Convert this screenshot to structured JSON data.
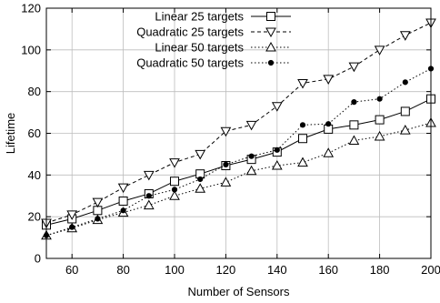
{
  "chart_data": {
    "type": "line",
    "title": "",
    "xlabel": "Number of Sensors",
    "ylabel": "Lifetime",
    "xlim": [
      50,
      200
    ],
    "ylim": [
      0,
      120
    ],
    "x_ticks": [
      60,
      80,
      100,
      120,
      140,
      160,
      180,
      200
    ],
    "y_ticks": [
      0,
      20,
      40,
      60,
      80,
      100,
      120
    ],
    "grid": true,
    "legend_position": "top-left",
    "x": [
      50,
      60,
      70,
      80,
      90,
      100,
      110,
      120,
      130,
      140,
      150,
      160,
      170,
      180,
      190,
      200
    ],
    "series": [
      {
        "name": "Linear 25 targets",
        "marker": "open-square",
        "line_style": "solid",
        "color": "#000000",
        "values": [
          16,
          19,
          23,
          27.5,
          31,
          37,
          40.5,
          44.5,
          47.5,
          51,
          57.5,
          62,
          64,
          66.5,
          70.5,
          76.5
        ]
      },
      {
        "name": "Quadratic 25 targets",
        "marker": "open-triangle-down",
        "line_style": "dashed",
        "color": "#000000",
        "values": [
          17,
          21,
          27,
          34,
          40,
          46,
          50,
          61,
          64,
          73,
          84,
          86,
          92,
          100,
          107,
          113
        ]
      },
      {
        "name": "Linear 50 targets",
        "marker": "open-triangle-up",
        "line_style": "dotted",
        "color": "#000000",
        "values": [
          11,
          14.5,
          18.5,
          22,
          25.5,
          30,
          33.5,
          36.5,
          42,
          44.5,
          46,
          50.5,
          56.5,
          58.5,
          61.5,
          65
        ]
      },
      {
        "name": "Quadratic 50 targets",
        "marker": "filled-circle",
        "line_style": "dotted",
        "color": "#000000",
        "values": [
          11,
          15,
          19,
          23,
          30,
          33,
          38,
          45,
          49,
          52,
          64,
          64.5,
          75,
          76.5,
          84.5,
          91
        ]
      }
    ]
  }
}
